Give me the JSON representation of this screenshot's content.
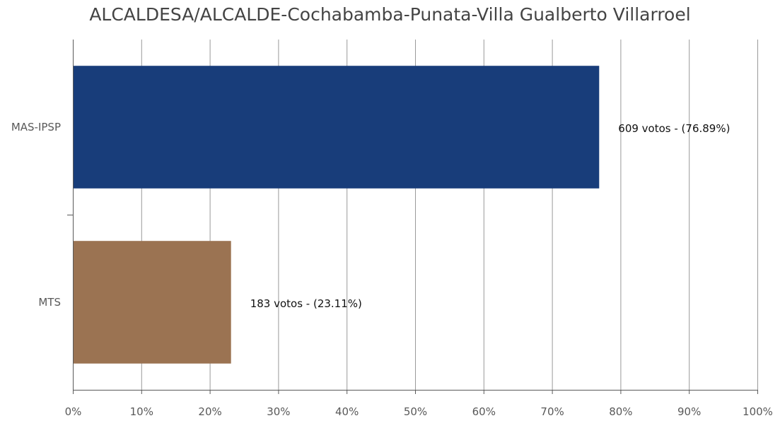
{
  "chart_data": {
    "type": "bar",
    "orientation": "horizontal",
    "title": "ALCALDESA/ALCALDE-Cochabamba-Punata-Villa Gualberto Villarroel",
    "categories": [
      "MAS-IPSP",
      "MTS"
    ],
    "values": [
      76.89,
      23.11
    ],
    "data_labels": [
      "609 votos - (76.89%)",
      "183 votos - (23.11%)"
    ],
    "colors": [
      "#183d7a",
      "#9b7352"
    ],
    "xlim": [
      0,
      100
    ],
    "x_ticks": [
      0,
      10,
      20,
      30,
      40,
      50,
      60,
      70,
      80,
      90,
      100
    ],
    "x_tick_labels": [
      "0%",
      "10%",
      "20%",
      "30%",
      "40%",
      "50%",
      "60%",
      "70%",
      "80%",
      "90%",
      "100%"
    ],
    "grid": true,
    "grid_color": "#9a9a9a",
    "axis_color": "#595959"
  }
}
